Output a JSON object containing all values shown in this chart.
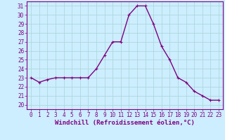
{
  "x": [
    0,
    1,
    2,
    3,
    4,
    5,
    6,
    7,
    8,
    9,
    10,
    11,
    12,
    13,
    14,
    15,
    16,
    17,
    18,
    19,
    20,
    21,
    22,
    23
  ],
  "y": [
    23,
    22.5,
    22.8,
    23,
    23,
    23,
    23,
    23,
    24,
    25.5,
    27,
    27,
    30,
    31,
    31,
    29,
    26.5,
    25,
    23,
    22.5,
    21.5,
    21,
    20.5,
    20.5
  ],
  "line_color": "#800080",
  "marker": "+",
  "bg_color": "#cceeff",
  "grid_color": "#aad4d4",
  "xlabel": "Windchill (Refroidissement éolien,°C)",
  "ylim": [
    19.5,
    31.5
  ],
  "xlim": [
    -0.5,
    23.5
  ],
  "yticks": [
    20,
    21,
    22,
    23,
    24,
    25,
    26,
    27,
    28,
    29,
    30,
    31
  ],
  "xticks": [
    0,
    1,
    2,
    3,
    4,
    5,
    6,
    7,
    8,
    9,
    10,
    11,
    12,
    13,
    14,
    15,
    16,
    17,
    18,
    19,
    20,
    21,
    22,
    23
  ],
  "xlabel_fontsize": 6.5,
  "tick_fontsize": 5.5,
  "line_width": 1.0,
  "marker_size": 3.5,
  "marker_ew": 0.8
}
